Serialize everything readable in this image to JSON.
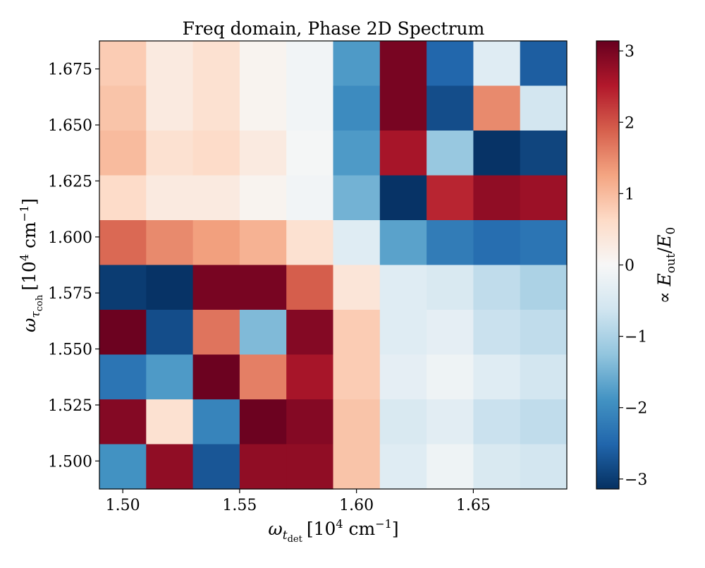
{
  "chart_data": {
    "type": "heatmap",
    "title": "Freq domain, Phase 2D Spectrum",
    "xlabel": {
      "symbol": "ω",
      "sub": "t",
      "subsub": "det",
      "units_pre": "[10",
      "units_exp": "4",
      "units_mid": " cm",
      "units_exp2": "−1",
      "units_post": "]"
    },
    "ylabel": {
      "symbol": "ω",
      "sub": "τ",
      "subsub": "coh",
      "units_pre": "[10",
      "units_exp": "4",
      "units_mid": " cm",
      "units_exp2": "−1",
      "units_post": "]"
    },
    "colorbar_label": {
      "prefix": "∝ ",
      "num": "E",
      "num_sub": "out",
      "sep": "/",
      "den": "E",
      "den_sub": "0"
    },
    "xlim": [
      1.49,
      1.69
    ],
    "ylim": [
      1.4875,
      1.6875
    ],
    "x_edges": [
      1.49,
      1.51,
      1.53,
      1.55,
      1.57,
      1.59,
      1.61,
      1.63,
      1.65,
      1.67,
      1.69
    ],
    "y_edges": [
      1.4875,
      1.5075,
      1.5275,
      1.5475,
      1.5675,
      1.5875,
      1.6075,
      1.6275,
      1.6475,
      1.6675,
      1.6875
    ],
    "x_ticks": [
      1.5,
      1.55,
      1.6,
      1.65
    ],
    "x_tick_labels": [
      "1.50",
      "1.55",
      "1.60",
      "1.65"
    ],
    "y_ticks": [
      1.5,
      1.525,
      1.55,
      1.575,
      1.6,
      1.625,
      1.65,
      1.675
    ],
    "y_tick_labels": [
      "1.500",
      "1.525",
      "1.550",
      "1.575",
      "1.600",
      "1.625",
      "1.650",
      "1.675"
    ],
    "colorbar_range": [
      -3.14,
      3.14
    ],
    "colorbar_ticks": [
      3,
      2,
      1,
      0,
      -1,
      -2,
      -3
    ],
    "colorbar_tick_labels": [
      "3",
      "2",
      "1",
      "0",
      "−1",
      "−2",
      "−3"
    ],
    "colormap": "RdBu_r",
    "colormap_stops": [
      "#053061",
      "#2166ac",
      "#4393c3",
      "#92c5de",
      "#d1e5f0",
      "#f7f7f7",
      "#fddbc7",
      "#f4a582",
      "#d6604d",
      "#b2182b",
      "#67001f"
    ],
    "values_rows_top_to_bottom": [
      [
        0.8,
        0.3,
        0.5,
        0.1,
        -0.1,
        -1.8,
        3.0,
        -2.5,
        -0.4,
        -2.6
      ],
      [
        0.9,
        0.3,
        0.5,
        0.1,
        -0.1,
        -2.0,
        3.0,
        -2.8,
        1.5,
        -0.6
      ],
      [
        1.0,
        0.5,
        0.6,
        0.3,
        -0.05,
        -1.8,
        2.6,
        -1.2,
        -3.1,
        -2.9
      ],
      [
        0.6,
        0.3,
        0.3,
        0.1,
        -0.1,
        -1.5,
        -3.1,
        2.4,
        2.8,
        2.7
      ],
      [
        1.8,
        1.5,
        1.3,
        1.1,
        0.5,
        -0.4,
        -1.7,
        -2.2,
        -2.4,
        -2.3
      ],
      [
        -3.0,
        -3.1,
        3.0,
        3.0,
        1.9,
        0.4,
        -0.4,
        -0.5,
        -0.8,
        -1.0
      ],
      [
        3.1,
        -2.8,
        1.7,
        -1.4,
        2.9,
        0.8,
        -0.4,
        -0.3,
        -0.7,
        -0.8
      ],
      [
        -2.3,
        -1.8,
        3.1,
        1.6,
        2.6,
        0.8,
        -0.3,
        -0.15,
        -0.4,
        -0.6
      ],
      [
        2.9,
        0.5,
        -2.1,
        3.1,
        2.9,
        0.9,
        -0.5,
        -0.35,
        -0.7,
        -0.8
      ],
      [
        -1.9,
        2.8,
        -2.7,
        2.8,
        2.8,
        0.9,
        -0.4,
        -0.15,
        -0.5,
        -0.6
      ]
    ]
  }
}
